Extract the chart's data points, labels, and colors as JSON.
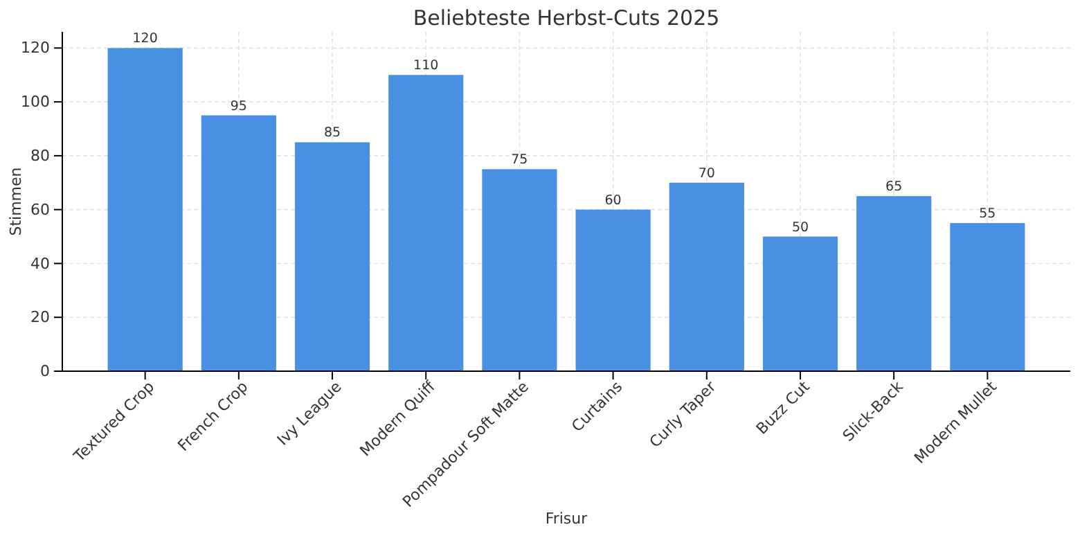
{
  "chart_data": {
    "type": "bar",
    "title": "Beliebteste Herbst-Cuts 2025",
    "xlabel": "Frisur",
    "ylabel": "Stimmen",
    "categories": [
      "Textured Crop",
      "French Crop",
      "Ivy League",
      "Modern Quiff",
      "Pompadour Soft Matte",
      "Curtains",
      "Curly Taper",
      "Buzz Cut",
      "Slick-Back",
      "Modern Mullet"
    ],
    "values": [
      120,
      95,
      85,
      110,
      75,
      60,
      70,
      50,
      65,
      55
    ],
    "color": "#4a90e2",
    "ylim": [
      0,
      126
    ],
    "yticks": [
      0,
      20,
      40,
      60,
      80,
      100,
      120
    ],
    "grid": true,
    "data_labels": true
  }
}
